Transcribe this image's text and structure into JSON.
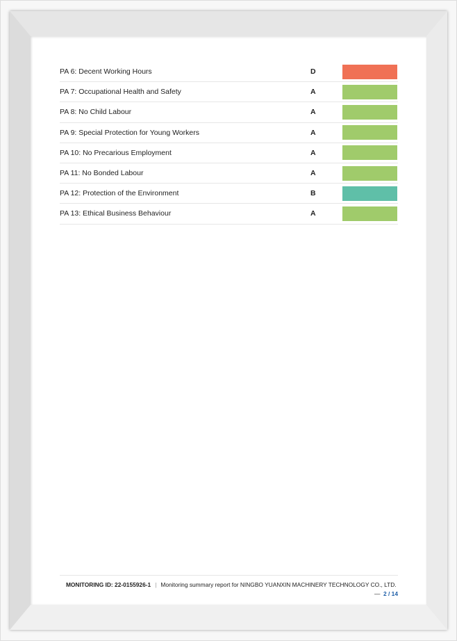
{
  "rows": [
    {
      "label": "PA 6: Decent Working Hours",
      "grade": "D",
      "color": "#f07155"
    },
    {
      "label": "PA 7: Occupational Health and Safety",
      "grade": "A",
      "color": "#a0cb6b"
    },
    {
      "label": "PA 8: No Child Labour",
      "grade": "A",
      "color": "#a0cb6b"
    },
    {
      "label": "PA 9: Special Protection for Young Workers",
      "grade": "A",
      "color": "#a0cb6b"
    },
    {
      "label": "PA 10: No Precarious Employment",
      "grade": "A",
      "color": "#a0cb6b"
    },
    {
      "label": "PA 11: No Bonded Labour",
      "grade": "A",
      "color": "#a0cb6b"
    },
    {
      "label": "PA 12: Protection of the Environment",
      "grade": "B",
      "color": "#5fbfa8"
    },
    {
      "label": "PA 13: Ethical Business Behaviour",
      "grade": "A",
      "color": "#a0cb6b"
    }
  ],
  "footer": {
    "monitoring_id": "MONITORING ID: 22-0155926-1",
    "separator": "|",
    "report_text": "Monitoring summary report for NINGBO YUANXIN MACHINERY TECHNOLOGY CO., LTD.",
    "dash": "—",
    "page": "2 / 14"
  }
}
